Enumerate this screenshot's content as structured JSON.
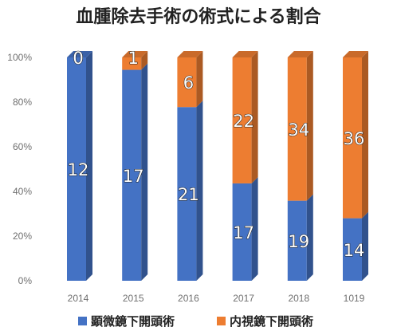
{
  "chart_data": {
    "type": "bar",
    "stacked": "percent",
    "title": "血腫除去手術の術式による割合",
    "categories": [
      "2014",
      "2015",
      "2016",
      "2017",
      "2018",
      "1019"
    ],
    "series": [
      {
        "name": "顕微鏡下開頭術",
        "color": "#4472c4",
        "values": [
          12,
          17,
          21,
          17,
          19,
          14
        ]
      },
      {
        "name": "内視鏡下開頭術",
        "color": "#ed7d31",
        "values": [
          0,
          1,
          6,
          22,
          34,
          36
        ]
      }
    ],
    "yticks": [
      "0%",
      "20%",
      "40%",
      "60%",
      "80%",
      "100%"
    ],
    "ylim": [
      0,
      100
    ],
    "legend_position": "bottom",
    "grid": false
  }
}
